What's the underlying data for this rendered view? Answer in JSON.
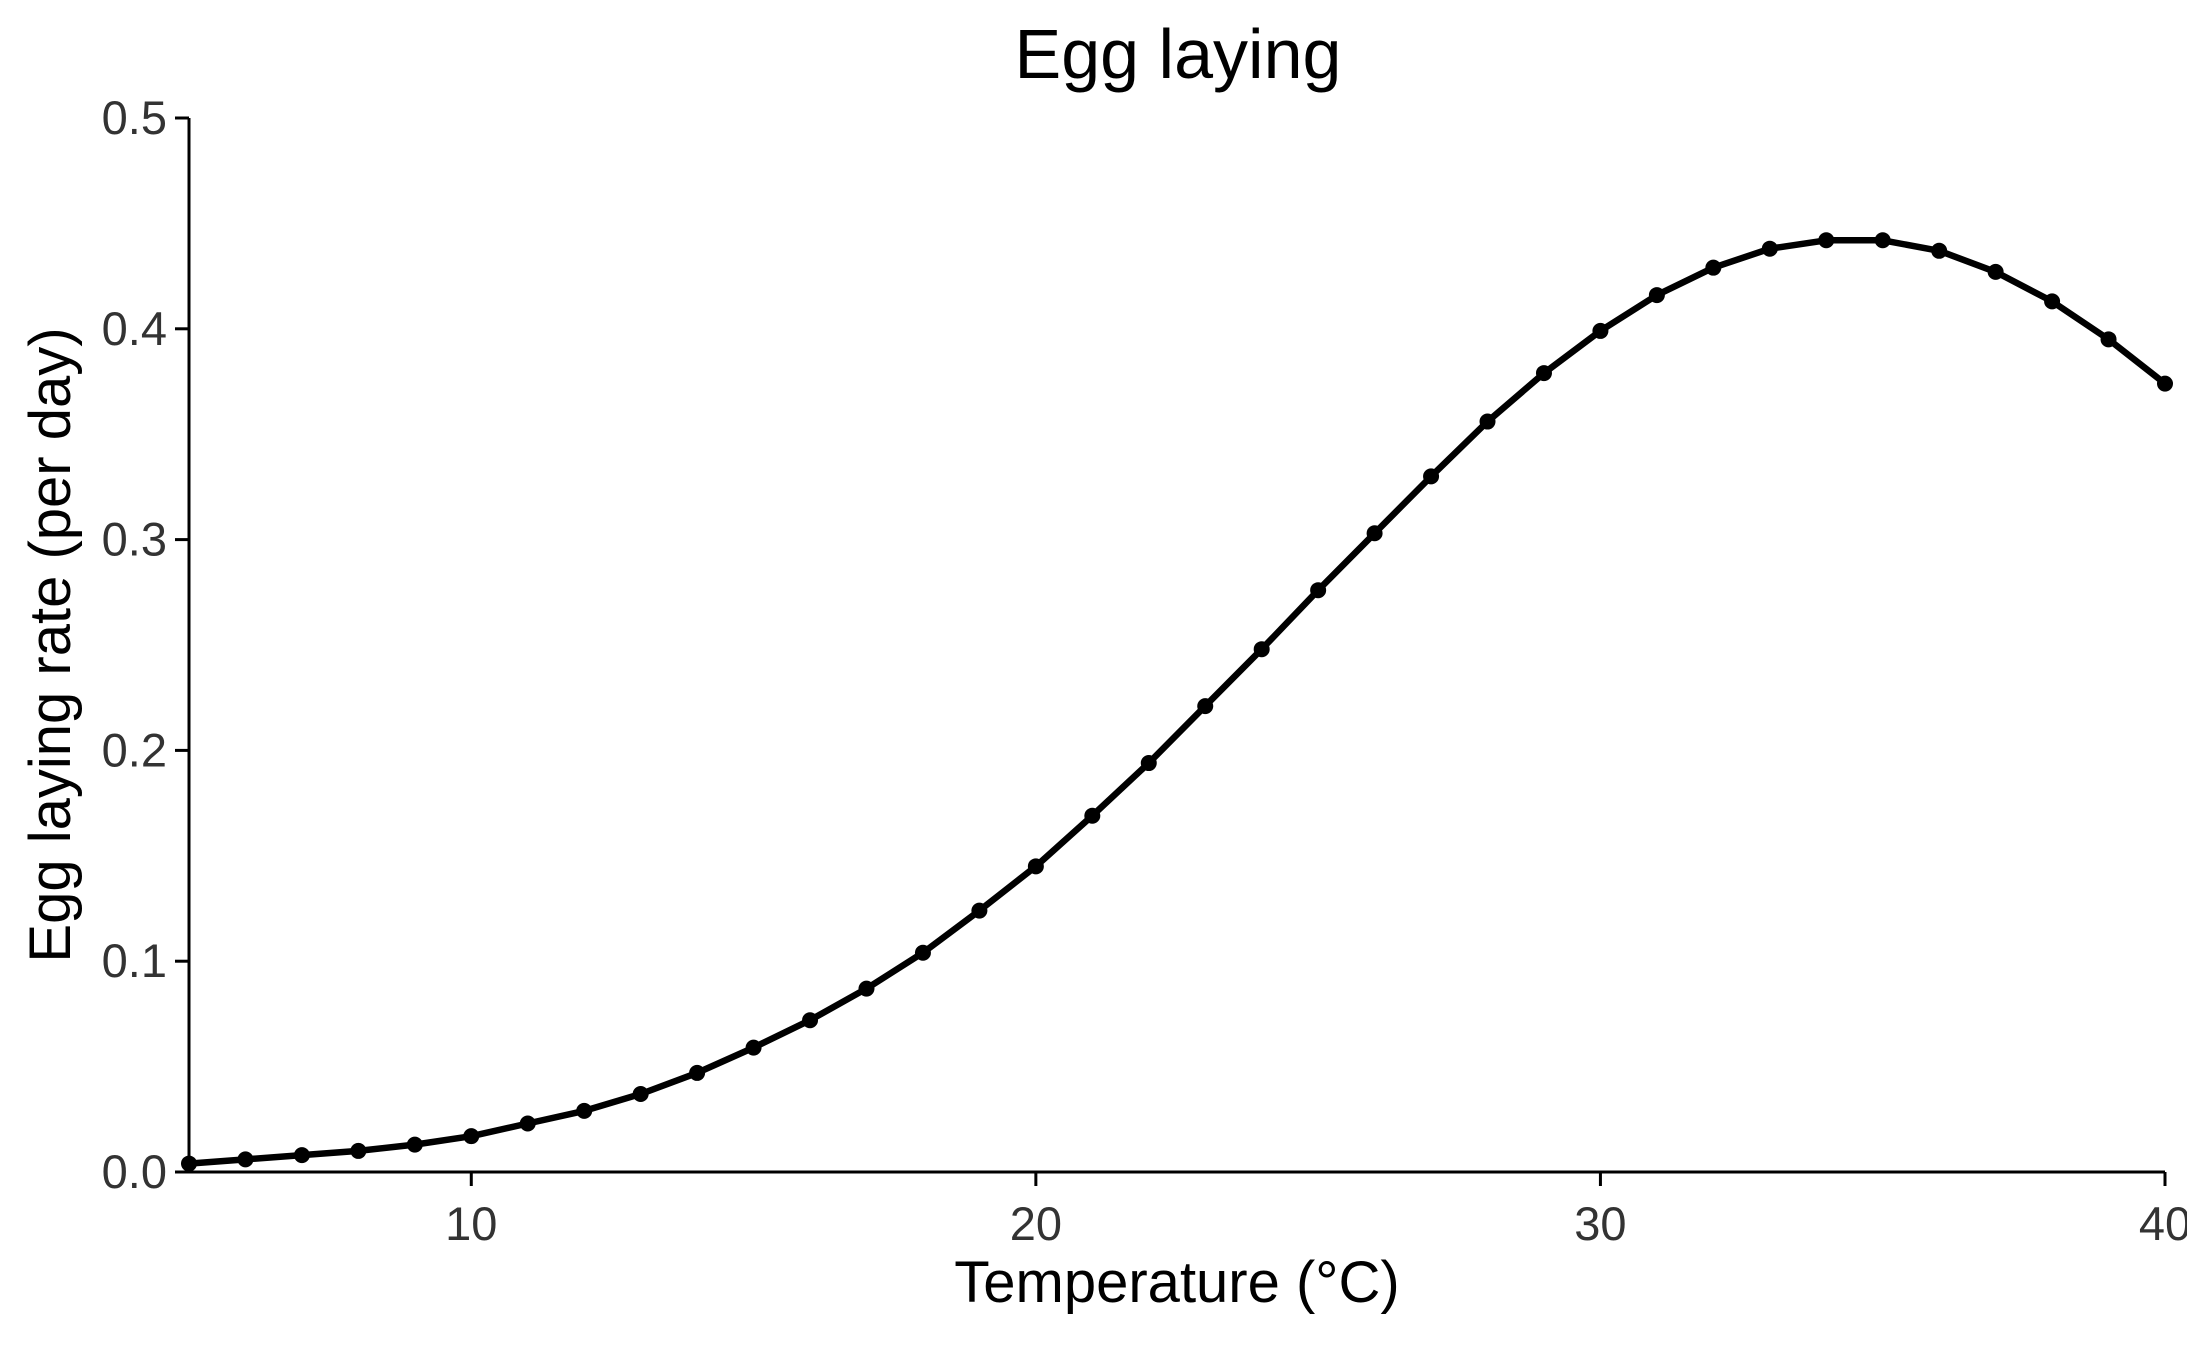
{
  "chart_data": {
    "type": "line",
    "title": "Egg laying",
    "xlabel": "Temperature (°C)",
    "ylabel": "Egg laying rate (per day)",
    "xlim": [
      5,
      40
    ],
    "ylim": [
      0,
      0.5
    ],
    "x_ticks": [
      10,
      20,
      30,
      40
    ],
    "x_tick_labels": [
      "10",
      "20",
      "30",
      "40"
    ],
    "y_ticks": [
      0,
      0.1,
      0.2,
      0.3,
      0.4,
      0.5
    ],
    "y_tick_labels": [
      "0.0",
      "0.1",
      "0.2",
      "0.3",
      "0.4",
      "0.5"
    ],
    "grid": false,
    "legend": "none",
    "series": [
      {
        "color": "#000000",
        "markers": true,
        "x": [
          5,
          6,
          7,
          8,
          9,
          10,
          11,
          12,
          13,
          14,
          15,
          16,
          17,
          18,
          19,
          20,
          21,
          22,
          23,
          24,
          25,
          26,
          27,
          28,
          29,
          30,
          31,
          32,
          33,
          34,
          35,
          36,
          37,
          38,
          39,
          40
        ],
        "y": [
          0.004,
          0.006,
          0.008,
          0.01,
          0.013,
          0.017,
          0.023,
          0.029,
          0.037,
          0.047,
          0.059,
          0.072,
          0.087,
          0.104,
          0.124,
          0.145,
          0.169,
          0.194,
          0.221,
          0.248,
          0.276,
          0.303,
          0.33,
          0.356,
          0.379,
          0.399,
          0.416,
          0.429,
          0.438,
          0.442,
          0.442,
          0.437,
          0.427,
          0.413,
          0.395,
          0.374
        ]
      }
    ]
  }
}
